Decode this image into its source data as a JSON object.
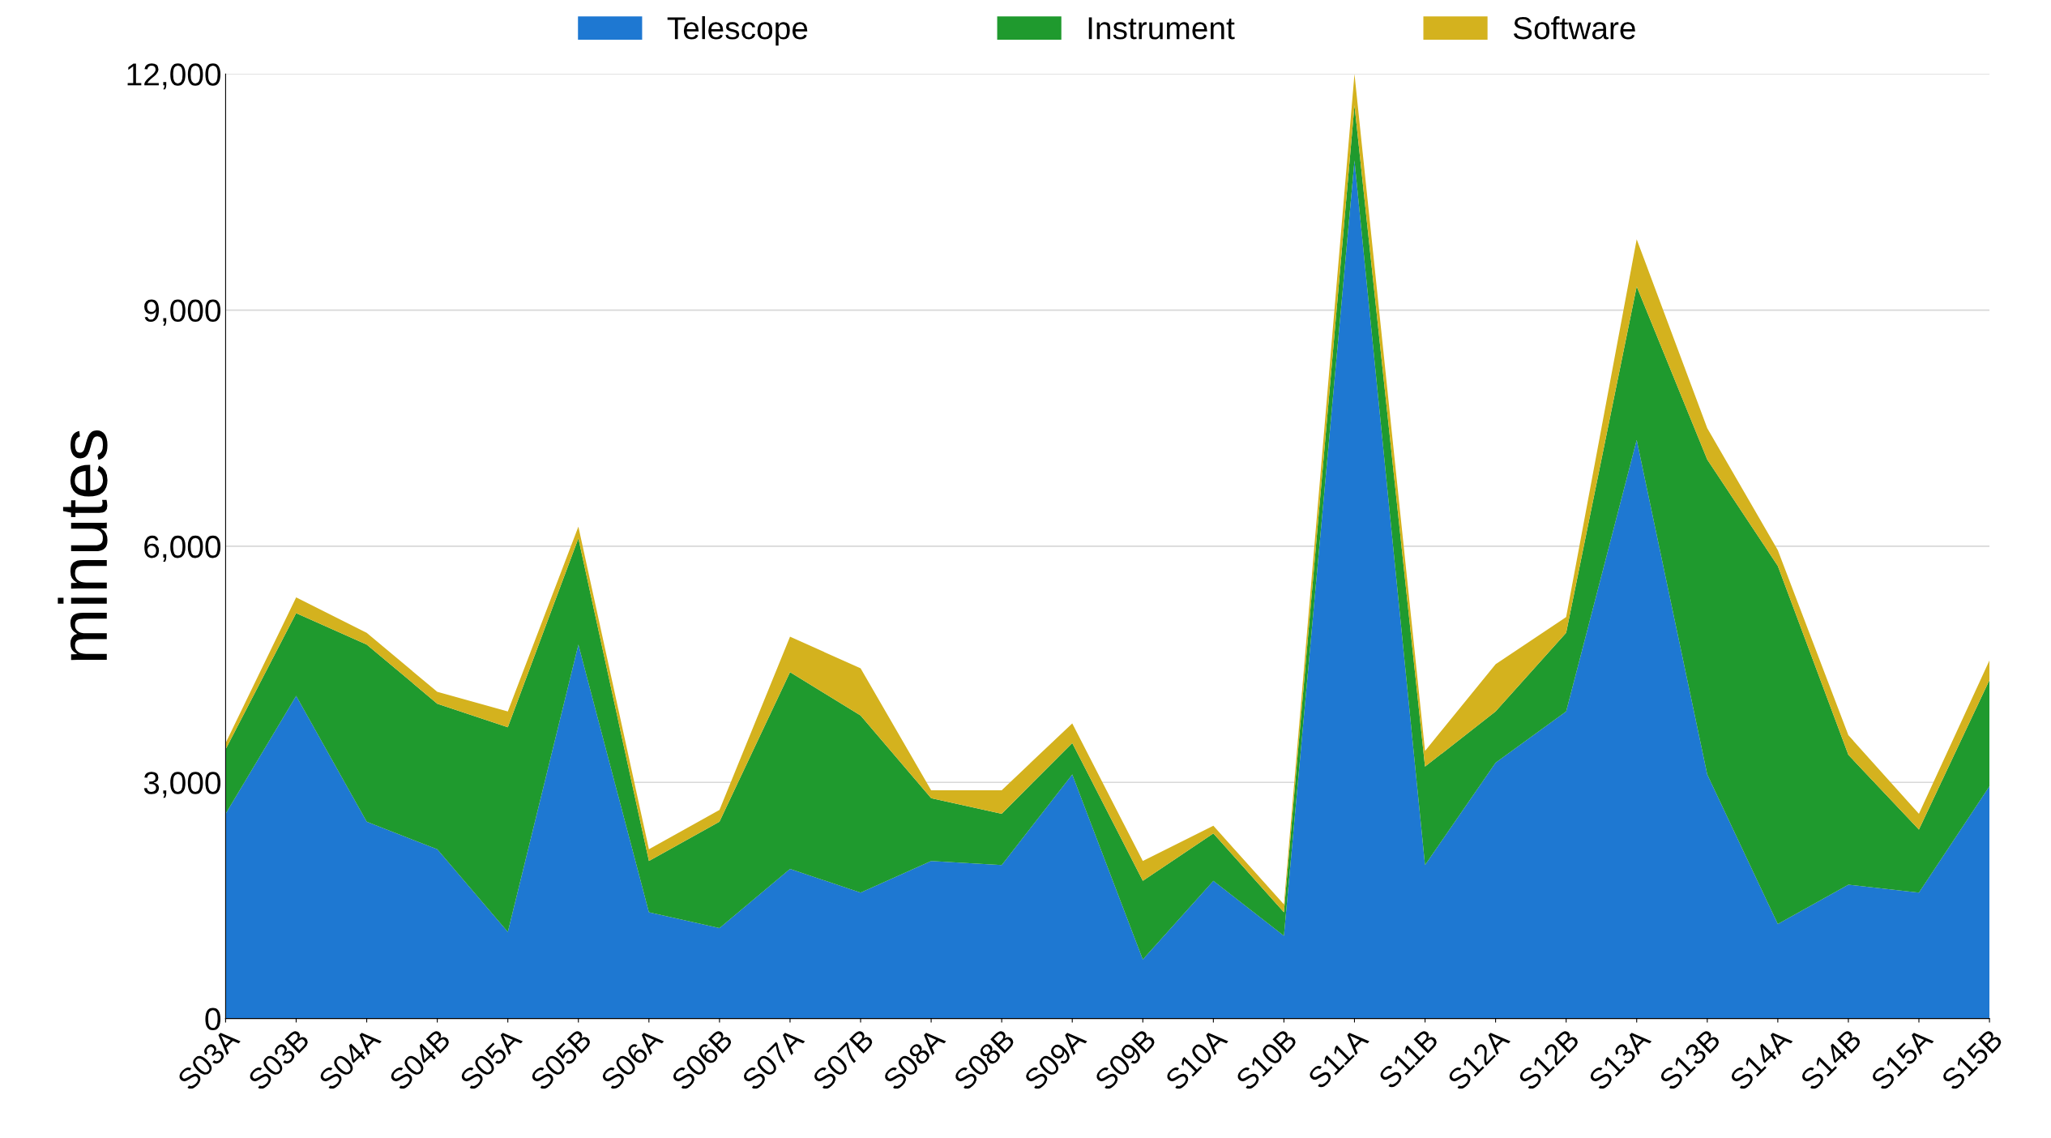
{
  "chart_data": {
    "type": "area",
    "stacked": true,
    "ylabel": "minutes",
    "categories": [
      "S03A",
      "S03B",
      "S04A",
      "S04B",
      "S05A",
      "S05B",
      "S06A",
      "S06B",
      "S07A",
      "S07B",
      "S08A",
      "S08B",
      "S09A",
      "S09B",
      "S10A",
      "S10B",
      "S11A",
      "S11B",
      "S12A",
      "S12B",
      "S13A",
      "S13B",
      "S14A",
      "S14B",
      "S15A",
      "S15B"
    ],
    "series": [
      {
        "name": "Telescope",
        "color": "#1e78d2",
        "values": [
          2600,
          4100,
          2500,
          2150,
          1100,
          4750,
          1350,
          1150,
          1900,
          1600,
          2000,
          1950,
          3100,
          750,
          1750,
          1050,
          10900,
          1950,
          3250,
          3900,
          7350,
          3100,
          1200,
          1700,
          1600,
          2950
        ]
      },
      {
        "name": "Instrument",
        "color": "#1f9a2e",
        "values": [
          820,
          1050,
          2250,
          1850,
          2600,
          1350,
          650,
          1350,
          2500,
          2250,
          800,
          650,
          400,
          1000,
          600,
          300,
          700,
          1250,
          650,
          1000,
          1950,
          4000,
          4550,
          1650,
          800,
          1350
        ]
      },
      {
        "name": "Software",
        "color": "#d4b21e",
        "values": [
          80,
          200,
          150,
          150,
          200,
          150,
          150,
          150,
          450,
          600,
          100,
          300,
          250,
          250,
          100,
          100,
          400,
          200,
          600,
          200,
          600,
          400,
          200,
          250,
          200,
          250
        ]
      }
    ],
    "ylim": [
      0,
      12000
    ],
    "yticks": [
      {
        "value": 0,
        "label": "0"
      },
      {
        "value": 3000,
        "label": "3,000"
      },
      {
        "value": 6000,
        "label": "6,000"
      },
      {
        "value": 9000,
        "label": "9,000"
      },
      {
        "value": 12000,
        "label": "12,000"
      }
    ],
    "grid": "y",
    "legend": "top"
  }
}
